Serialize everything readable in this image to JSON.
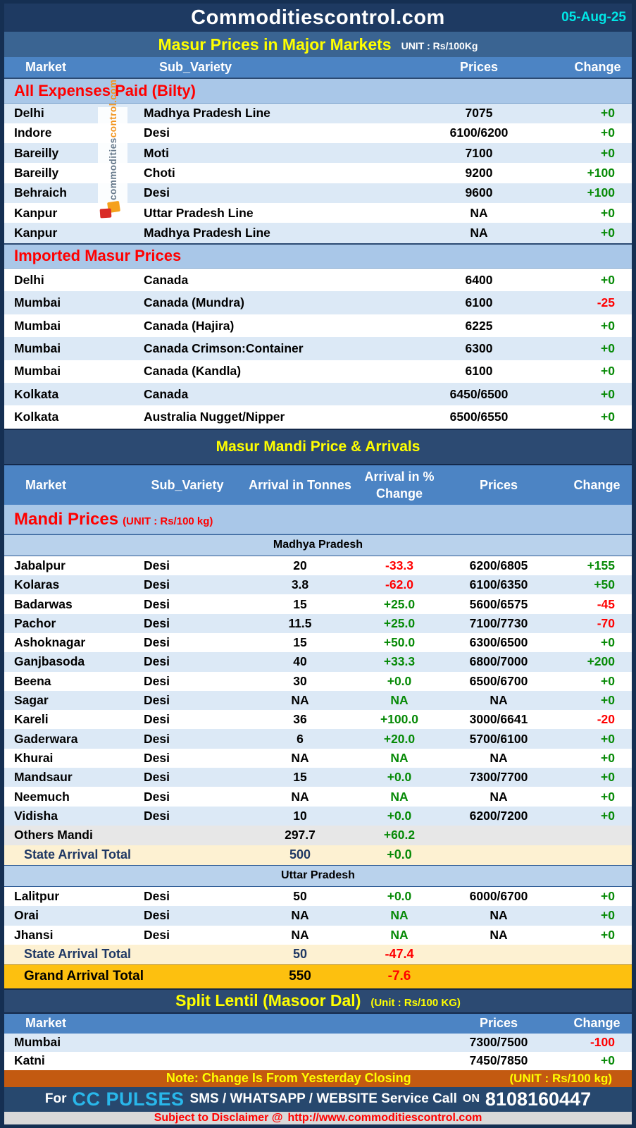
{
  "header": {
    "title": "Commoditiescontrol.com",
    "date": "05-Aug-25"
  },
  "major": {
    "title": "Masur Prices in Major Markets",
    "unit": "UNIT : Rs/100Kg",
    "columns": [
      "Market",
      "Sub_Variety",
      "Prices",
      "Change"
    ],
    "sections": [
      {
        "name": "All Expenses Paid (Bilty)",
        "shade": "even",
        "rows": [
          {
            "market": "Delhi",
            "variety": "Madhya Pradesh Line",
            "price": "7075",
            "change": "+0"
          },
          {
            "market": "Indore",
            "variety": "Desi",
            "price": "6100/6200",
            "change": "+0"
          },
          {
            "market": "Bareilly",
            "variety": "Moti",
            "price": "7100",
            "change": "+0"
          },
          {
            "market": "Bareilly",
            "variety": "Choti",
            "price": "9200",
            "change": "+100"
          },
          {
            "market": "Behraich",
            "variety": "Desi",
            "price": "9600",
            "change": "+100"
          },
          {
            "market": "Kanpur",
            "variety": "Uttar Pradesh Line",
            "price": "NA",
            "change": "+0"
          },
          {
            "market": "Kanpur",
            "variety": "Madhya Pradesh Line",
            "price": "NA",
            "change": "+0"
          }
        ]
      },
      {
        "name": "Imported Masur Prices",
        "shade": "odd",
        "rows": [
          {
            "market": "Delhi",
            "variety": "Canada",
            "price": "6400",
            "change": "+0"
          },
          {
            "market": "Mumbai",
            "variety": "Canada (Mundra)",
            "price": "6100",
            "change": "-25"
          },
          {
            "market": "Mumbai",
            "variety": "Canada (Hajira)",
            "price": "6225",
            "change": "+0"
          },
          {
            "market": "Mumbai",
            "variety": "Canada Crimson:Container",
            "price": "6300",
            "change": "+0"
          },
          {
            "market": "Mumbai",
            "variety": "Canada (Kandla)",
            "price": "6100",
            "change": "+0"
          },
          {
            "market": "Kolkata",
            "variety": "Canada",
            "price": "6450/6500",
            "change": "+0"
          },
          {
            "market": "Kolkata",
            "variety": "Australia Nugget/Nipper",
            "price": "6500/6550",
            "change": "+0"
          }
        ]
      }
    ]
  },
  "mandi": {
    "title": "Masur Mandi Price & Arrivals",
    "columns": [
      "Market",
      "Sub_Variety",
      "Arrival in Tonnes",
      "Arrival  in % Change",
      "Prices",
      "Change"
    ],
    "section_title": "Mandi Prices",
    "unit": "(UNIT : Rs/100 kg)",
    "states": [
      {
        "name": "Madhya Pradesh",
        "rows": [
          {
            "market": "Jabalpur",
            "variety": "Desi",
            "tonnes": "20",
            "pct": "-33.3",
            "price": "6200/6805",
            "change": "+155"
          },
          {
            "market": "Kolaras",
            "variety": "Desi",
            "tonnes": "3.8",
            "pct": "-62.0",
            "price": "6100/6350",
            "change": "+50"
          },
          {
            "market": "Badarwas",
            "variety": "Desi",
            "tonnes": "15",
            "pct": "+25.0",
            "price": "5600/6575",
            "change": "-45"
          },
          {
            "market": "Pachor",
            "variety": "Desi",
            "tonnes": "11.5",
            "pct": "+25.0",
            "price": "7100/7730",
            "change": "-70"
          },
          {
            "market": "Ashoknagar",
            "variety": "Desi",
            "tonnes": "15",
            "pct": "+50.0",
            "price": "6300/6500",
            "change": "+0"
          },
          {
            "market": "Ganjbasoda",
            "variety": "Desi",
            "tonnes": "40",
            "pct": "+33.3",
            "price": "6800/7000",
            "change": "+200"
          },
          {
            "market": "Beena",
            "variety": "Desi",
            "tonnes": "30",
            "pct": "+0.0",
            "price": "6500/6700",
            "change": "+0"
          },
          {
            "market": "Sagar",
            "variety": "Desi",
            "tonnes": "NA",
            "pct": "NA",
            "price": "NA",
            "change": "+0"
          },
          {
            "market": "Kareli",
            "variety": "Desi",
            "tonnes": "36",
            "pct": "+100.0",
            "price": "3000/6641",
            "change": "-20"
          },
          {
            "market": "Gaderwara",
            "variety": "Desi",
            "tonnes": "6",
            "pct": "+20.0",
            "price": "5700/6100",
            "change": "+0"
          },
          {
            "market": "Khurai",
            "variety": "Desi",
            "tonnes": "NA",
            "pct": "NA",
            "price": "NA",
            "change": "+0"
          },
          {
            "market": "Mandsaur",
            "variety": "Desi",
            "tonnes": "15",
            "pct": "+0.0",
            "price": "7300/7700",
            "change": "+0"
          },
          {
            "market": "Neemuch",
            "variety": "Desi",
            "tonnes": "NA",
            "pct": "NA",
            "price": "NA",
            "change": "+0"
          },
          {
            "market": "Vidisha",
            "variety": "Desi",
            "tonnes": "10",
            "pct": "+0.0",
            "price": "6200/7200",
            "change": "+0"
          }
        ],
        "others": {
          "label": "Others Mandi",
          "tonnes": "297.7",
          "pct": "+60.2"
        },
        "total": {
          "label": "State Arrival Total",
          "tonnes": "500",
          "pct": "+0.0"
        }
      },
      {
        "name": "Uttar Pradesh",
        "rows": [
          {
            "market": "Lalitpur",
            "variety": "Desi",
            "tonnes": "50",
            "pct": "+0.0",
            "price": "6000/6700",
            "change": "+0"
          },
          {
            "market": "Orai",
            "variety": "Desi",
            "tonnes": "NA",
            "pct": "NA",
            "price": "NA",
            "change": "+0"
          },
          {
            "market": "Jhansi",
            "variety": "Desi",
            "tonnes": "NA",
            "pct": "NA",
            "price": "NA",
            "change": "+0"
          }
        ],
        "total": {
          "label": "State Arrival Total",
          "tonnes": "50",
          "pct": "-47.4"
        }
      }
    ],
    "grand_total": {
      "label": "Grand Arrival Total",
      "tonnes": "550",
      "pct": "-7.6"
    }
  },
  "split": {
    "title": "Split Lentil (Masoor Dal)",
    "unit": "(Unit : Rs/100 KG)",
    "columns": [
      "Market",
      "Prices",
      "Change"
    ],
    "rows": [
      {
        "market": "Mumbai",
        "price": "7300/7500",
        "change": "-100"
      },
      {
        "market": "Katni",
        "price": "7450/7850",
        "change": "+0"
      }
    ]
  },
  "footer": {
    "note": "Note: Change Is From Yesterday Closing",
    "note_unit": "(UNIT : Rs/100 kg)",
    "service_prefix": "For",
    "service_brand": "CC PULSES",
    "service_text": "SMS / WHATSAPP / WEBSITE Service Call",
    "service_on": "ON",
    "service_phone": "8108160447",
    "disclaimer_prefix": "Subject to Disclaimer @",
    "disclaimer_url": "http://www.commoditiescontrol.com"
  },
  "watermark": {
    "gray": "commodities",
    "orange": "control.com"
  },
  "colors": {
    "header_navy": "#1e3a62",
    "title_bar_blue": "#3a6492",
    "table_head_blue": "#4c84c4",
    "section_band_blue": "#a9c7e8",
    "state_band_blue": "#b9d2ec",
    "row_shade_blue": "#dce9f6",
    "others_gray": "#e7e7e7",
    "total_cream": "#fdf1d2",
    "grand_gold": "#fdc00f",
    "note_orange": "#c35a11",
    "negative_red": "#ff0000",
    "positive_green": "#078a07",
    "date_cyan": "#00e6e6",
    "brand_cyan": "#29b7ea",
    "title_yellow": "#ffff00"
  }
}
